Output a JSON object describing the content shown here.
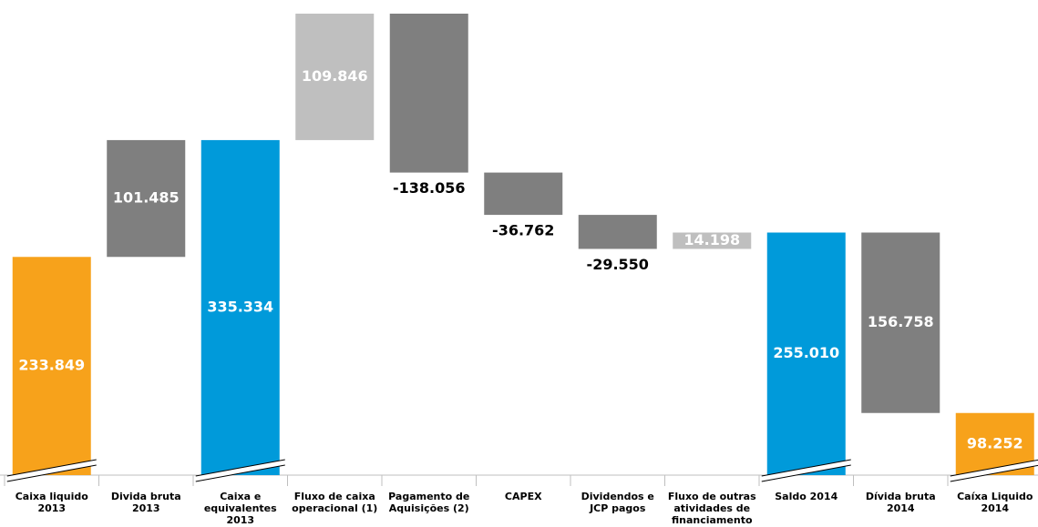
{
  "chart_data": {
    "type": "waterfall",
    "categories": [
      [
        "Caixa liquido",
        "2013"
      ],
      [
        "Divida bruta",
        "2013"
      ],
      [
        "Caixa e",
        "equivalentes",
        "2013"
      ],
      [
        "Fluxo de caixa",
        "operacional (1)"
      ],
      [
        "Pagamento de",
        "Aquisições (2)"
      ],
      [
        "CAPEX"
      ],
      [
        "Dividendos e",
        "JCP pagos"
      ],
      [
        "Fluxo de outras",
        "atividades de",
        "financiamento"
      ],
      [
        "Saldo 2014"
      ],
      [
        "Dívida bruta",
        "2014"
      ],
      [
        "Caíxa Liquido",
        "2014"
      ]
    ],
    "measures": [
      "absolute",
      "relative",
      "absolute",
      "relative",
      "relative",
      "relative",
      "relative",
      "relative",
      "absolute",
      "relative",
      "absolute"
    ],
    "values": [
      233849,
      101485,
      335334,
      109846,
      -138056,
      -36762,
      -29550,
      14198,
      255010,
      -156758,
      98252
    ],
    "value_labels": [
      "233.849",
      "101.485",
      "335.334",
      "109.846",
      "-138.056",
      "-36.762",
      "-29.550",
      "14.198",
      "255.010",
      "156.758",
      "98.252"
    ],
    "colors": [
      "#f7a21b",
      "#7f7f7f",
      "#009ada",
      "#bfbfbf",
      "#7f7f7f",
      "#7f7f7f",
      "#7f7f7f",
      "#bfbfbf",
      "#009ada",
      "#7f7f7f",
      "#f7a21b"
    ]
  }
}
